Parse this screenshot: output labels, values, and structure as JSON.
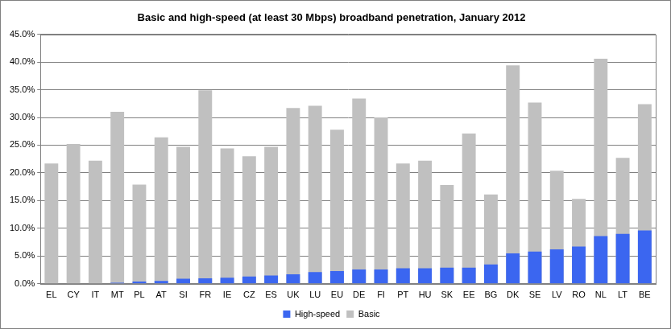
{
  "chart_data": {
    "type": "bar",
    "title": "Basic and high-speed (at least 30 Mbps) broadband penetration, January 2012",
    "categories": [
      "EL",
      "CY",
      "IT",
      "MT",
      "PL",
      "AT",
      "SI",
      "FR",
      "IE",
      "CZ",
      "ES",
      "UK",
      "LU",
      "EU",
      "DE",
      "FI",
      "PT",
      "HU",
      "SK",
      "EE",
      "BG",
      "DK",
      "SE",
      "LV",
      "RO",
      "NL",
      "LT",
      "BE"
    ],
    "series": [
      {
        "name": "High-speed",
        "color": "#3b66f0",
        "values": [
          0,
          0,
          0,
          0.2,
          0.4,
          0.5,
          0.9,
          1.0,
          1.1,
          1.3,
          1.5,
          1.7,
          2.1,
          2.3,
          2.6,
          2.6,
          2.8,
          2.8,
          2.9,
          2.9,
          3.5,
          5.5,
          5.8,
          6.2,
          6.7,
          8.6,
          9.0,
          9.6
        ]
      },
      {
        "name": "Basic",
        "color": "#c0c0c0",
        "values": [
          21.7,
          25.2,
          22.2,
          31.0,
          17.9,
          26.4,
          24.7,
          34.9,
          24.4,
          23.0,
          24.7,
          31.7,
          32.1,
          27.8,
          33.4,
          30.0,
          21.7,
          22.2,
          17.8,
          27.1,
          16.1,
          39.4,
          32.7,
          20.4,
          15.3,
          40.6,
          22.7,
          32.4
        ]
      }
    ],
    "ylim": [
      0,
      45
    ],
    "yticks": [
      {
        "value": 0,
        "label": "0.0%"
      },
      {
        "value": 5,
        "label": "5.0%"
      },
      {
        "value": 10,
        "label": "10.0%"
      },
      {
        "value": 15,
        "label": "15.0%"
      },
      {
        "value": 20,
        "label": "20.0%"
      },
      {
        "value": 25,
        "label": "25.0%"
      },
      {
        "value": 30,
        "label": "30.0%"
      },
      {
        "value": 35,
        "label": "35.0%"
      },
      {
        "value": 40,
        "label": "40.0%"
      },
      {
        "value": 45,
        "label": "45.0%"
      }
    ],
    "grid": true,
    "legend": "bottom",
    "stacked": false
  }
}
